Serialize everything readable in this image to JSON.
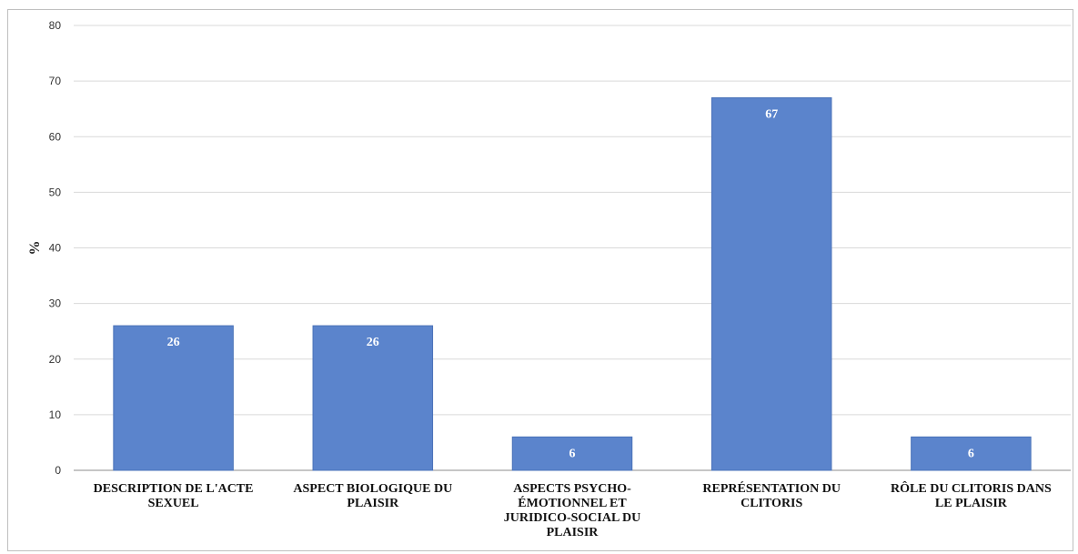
{
  "chart_data": {
    "type": "bar",
    "categories": [
      [
        "DESCRIPTION DE L'ACTE",
        "SEXUEL"
      ],
      [
        "ASPECT BIOLOGIQUE DU",
        "PLAISIR"
      ],
      [
        "ASPECTS PSYCHO-",
        "ÉMOTIONNEL ET",
        "JURIDICO-SOCIAL DU",
        "PLAISIR"
      ],
      [
        "REPRÉSENTATION DU",
        "CLITORIS"
      ],
      [
        "RÔLE DU CLITORIS DANS",
        "LE PLAISIR"
      ]
    ],
    "values": [
      26,
      26,
      6,
      67,
      6
    ],
    "data_labels": [
      "26",
      "26",
      "6",
      "67",
      "6"
    ],
    "ylabel": "%",
    "xlabel": "",
    "ylim": [
      0,
      80
    ],
    "yticks": [
      0,
      10,
      20,
      30,
      40,
      50,
      60,
      70,
      80
    ],
    "grid": true,
    "legend": "none",
    "colors": {
      "bar": "#5b84cc",
      "bar_edge": "#4a72b8",
      "grid": "#d9d9d9"
    }
  }
}
